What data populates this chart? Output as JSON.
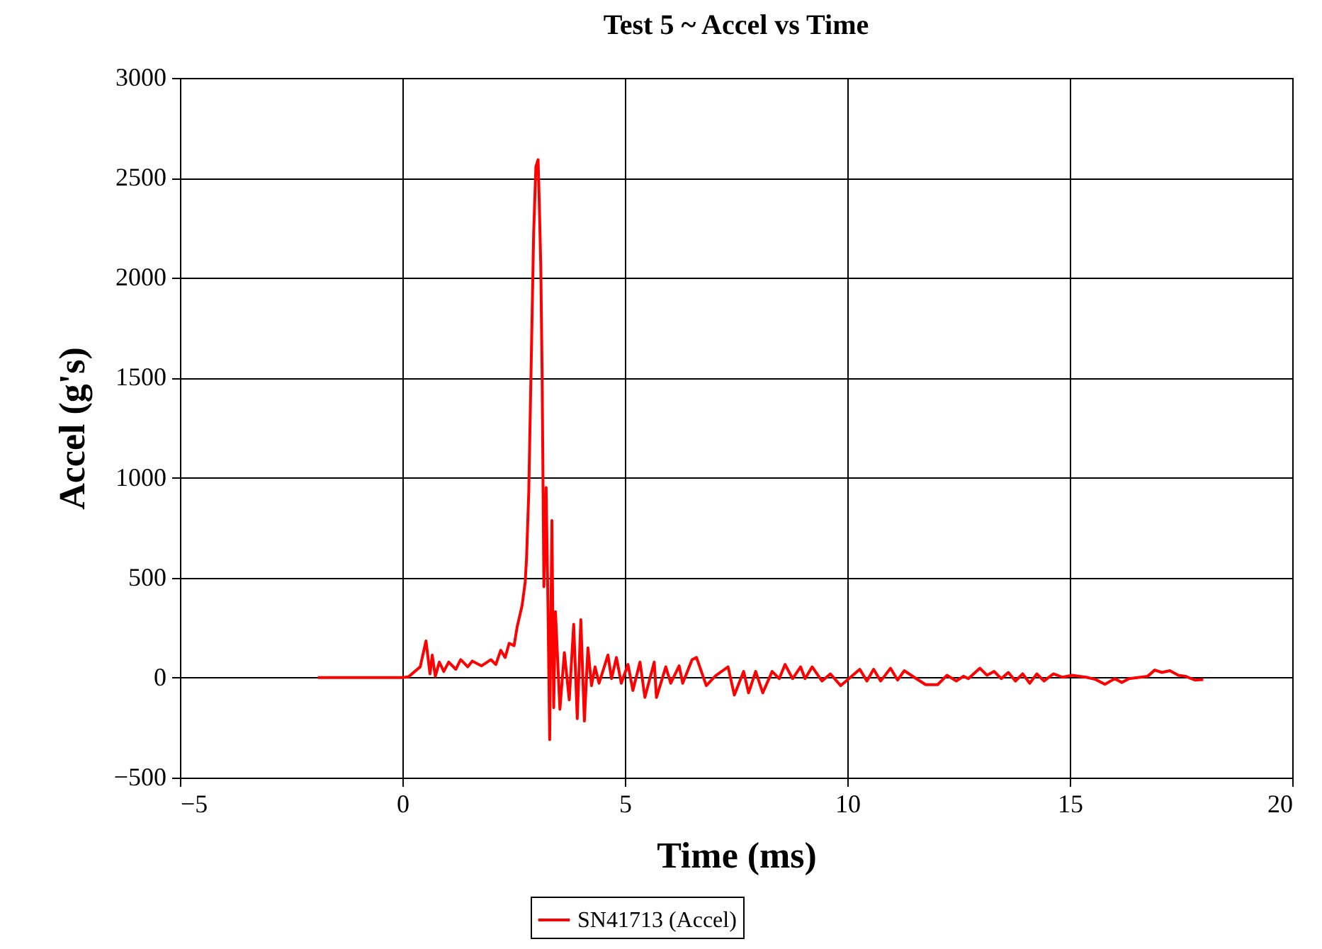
{
  "chart_data": {
    "type": "line",
    "title": "Test 5 ~ Accel vs Time",
    "xlabel": "Time (ms)",
    "ylabel": "Accel (g's)",
    "xlim": [
      -5,
      20
    ],
    "xticks": [
      -5,
      0,
      5,
      10,
      15,
      20
    ],
    "ylim": [
      -500,
      3000
    ],
    "yticks": [
      -500,
      0,
      500,
      1000,
      1500,
      2000,
      2500,
      3000
    ],
    "grid": true,
    "legend": "bottom",
    "series": [
      {
        "name": "SN41713 (Accel)",
        "color": "#ff0000",
        "x": [
          -1.9,
          -1.0,
          0.0,
          0.14,
          0.4,
          0.53,
          0.62,
          0.67,
          0.74,
          0.83,
          0.93,
          1.04,
          1.2,
          1.31,
          1.47,
          1.57,
          1.78,
          1.99,
          2.1,
          2.21,
          2.31,
          2.4,
          2.51,
          2.58,
          2.69,
          2.76,
          2.79,
          2.84,
          2.9,
          2.95,
          3.0,
          3.05,
          3.08,
          3.11,
          3.14,
          3.18,
          3.23,
          3.27,
          3.31,
          3.36,
          3.4,
          3.44,
          3.54,
          3.64,
          3.75,
          3.85,
          3.93,
          4.01,
          4.09,
          4.17,
          4.25,
          4.33,
          4.42,
          4.62,
          4.7,
          4.81,
          4.92,
          5.07,
          5.18,
          5.34,
          5.45,
          5.66,
          5.71,
          5.92,
          6.03,
          6.22,
          6.3,
          6.51,
          6.61,
          6.83,
          7.04,
          7.32,
          7.46,
          7.67,
          7.78,
          7.94,
          8.1,
          8.31,
          8.47,
          8.6,
          8.77,
          8.95,
          9.05,
          9.21,
          9.43,
          9.62,
          9.85,
          10.28,
          10.44,
          10.59,
          10.75,
          10.97,
          11.13,
          11.28,
          11.55,
          11.76,
          12.03,
          12.24,
          12.45,
          12.61,
          12.72,
          12.98,
          13.14,
          13.3,
          13.46,
          13.62,
          13.78,
          13.94,
          14.1,
          14.26,
          14.42,
          14.63,
          14.84,
          15.05,
          15.37,
          15.58,
          15.79,
          16.01,
          16.17,
          16.33,
          16.59,
          16.75,
          16.91,
          17.07,
          17.25,
          17.44,
          17.6,
          17.81,
          18.0
        ],
        "values": [
          0,
          0,
          0,
          5,
          54,
          184,
          19,
          113,
          7,
          78,
          31,
          78,
          42,
          90,
          54,
          83,
          59,
          90,
          66,
          137,
          101,
          172,
          160,
          255,
          361,
          479,
          597,
          927,
          1635,
          2225,
          2556,
          2591,
          2343,
          2060,
          1517,
          455,
          951,
          385,
          -310,
          786,
          -150,
          330,
          -158,
          125,
          -111,
          267,
          -205,
          290,
          -217,
          149,
          -40,
          54,
          -28,
          113,
          -5,
          101,
          -28,
          66,
          -64,
          78,
          -99,
          78,
          -99,
          54,
          -28,
          59,
          -28,
          90,
          101,
          -40,
          10,
          54,
          -87,
          31,
          -76,
          31,
          -76,
          31,
          -5,
          66,
          -5,
          54,
          -5,
          54,
          -17,
          19,
          -40,
          42,
          -17,
          42,
          -17,
          47,
          -12,
          35,
          -5,
          -35,
          -35,
          12,
          -17,
          7,
          -5,
          47,
          12,
          31,
          -5,
          26,
          -17,
          19,
          -28,
          19,
          -17,
          19,
          2,
          12,
          2,
          -9,
          -33,
          -5,
          -24,
          -5,
          2,
          7,
          38,
          26,
          35,
          12,
          7,
          -12,
          -9
        ]
      }
    ]
  }
}
